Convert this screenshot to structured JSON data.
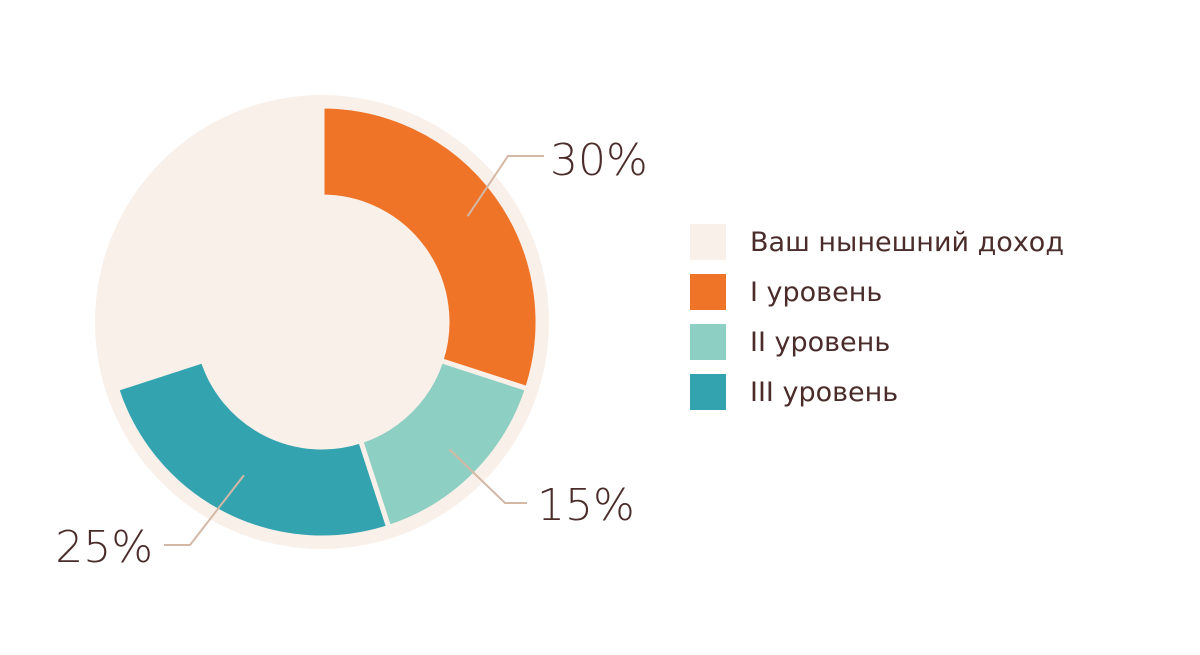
{
  "chart_data": {
    "type": "pie",
    "style": "donut",
    "slices": [
      {
        "name": "Ваш нынешний доход",
        "value": 30,
        "color": "#faf0ea",
        "label": ""
      },
      {
        "name": "I уровень",
        "value": 30,
        "color": "#ef7428",
        "label": "30%"
      },
      {
        "name": "II уровень",
        "value": 15,
        "color": "#8ecfc3",
        "label": "15%"
      },
      {
        "name": "III уровень",
        "value": 25,
        "color": "#33a3b0",
        "label": "25%"
      }
    ],
    "legend": [
      {
        "label": "Ваш нынешний доход",
        "color": "#faf0ea"
      },
      {
        "label": "I уровень",
        "color": "#ef7428"
      },
      {
        "label": "II уровень",
        "color": "#8ecfc3"
      },
      {
        "label": "III уровень",
        "color": "#33a3b0"
      }
    ],
    "legend_position": "right",
    "background_disc_color": "#faf0ea",
    "leader_line_color": "#d4b8a6"
  }
}
